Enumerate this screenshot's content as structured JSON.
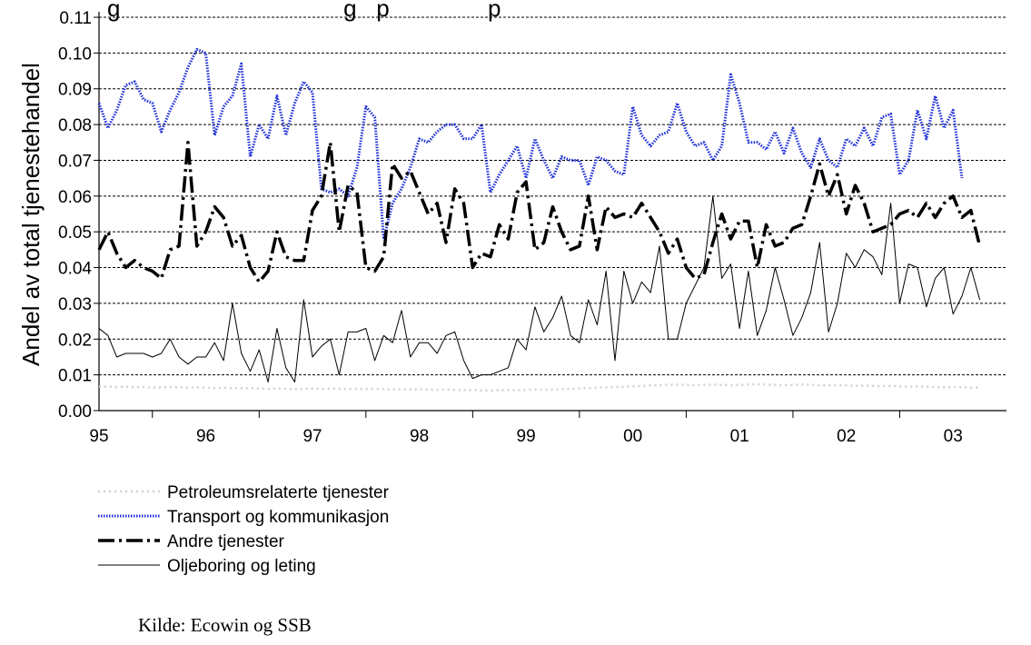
{
  "title_fragment": "g                                  g   p               p",
  "source": "Kilde: Ecowin og SSB",
  "colors": {
    "petroleum": "#d0d0d0",
    "transport": "#1f2fd6",
    "andre": "#000000",
    "olje": "#000000",
    "grid": "#000000"
  },
  "chart_data": {
    "type": "line",
    "ylabel": "Andel av total tjenestehandel",
    "ylim": [
      0,
      0.11
    ],
    "yticks": [
      "0.00",
      "0.01",
      "0.02",
      "0.03",
      "0.04",
      "0.05",
      "0.06",
      "0.07",
      "0.08",
      "0.09",
      "0.10",
      "0.11"
    ],
    "xlim": [
      1995.0,
      2003.5
    ],
    "xtick_labels": [
      "95",
      "96",
      "97",
      "98",
      "99",
      "00",
      "01",
      "02",
      "03"
    ],
    "grid": true,
    "legend_position": "bottom-left",
    "series": [
      {
        "name": "Petroleumsrelaterte tjenester",
        "style": "dotted-light",
        "x_start": 1995.0,
        "step": 0.08333,
        "values": [
          0.0068,
          0.0067,
          0.0066,
          0.0067,
          0.0065,
          0.0066,
          0.0064,
          0.0065,
          0.0066,
          0.0065,
          0.0064,
          0.0065,
          0.0064,
          0.0063,
          0.0064,
          0.0063,
          0.0062,
          0.0063,
          0.0062,
          0.0061,
          0.0062,
          0.0061,
          0.006,
          0.0061,
          0.0062,
          0.0061,
          0.0062,
          0.0061,
          0.006,
          0.0061,
          0.006,
          0.0061,
          0.006,
          0.0059,
          0.006,
          0.0059,
          0.006,
          0.0059,
          0.0058,
          0.0059,
          0.0058,
          0.0057,
          0.0058,
          0.0057,
          0.0056,
          0.0057,
          0.0058,
          0.0057,
          0.0058,
          0.0059,
          0.0058,
          0.0059,
          0.006,
          0.0061,
          0.0062,
          0.0063,
          0.0064,
          0.0065,
          0.0066,
          0.0067,
          0.0068,
          0.0069,
          0.007,
          0.0071,
          0.0072,
          0.0073,
          0.0072,
          0.0071,
          0.0072,
          0.0073,
          0.0072,
          0.0071,
          0.0072,
          0.0073,
          0.0074,
          0.0073,
          0.0072,
          0.0071,
          0.0072,
          0.0073,
          0.0072,
          0.0071,
          0.007,
          0.0071,
          0.007,
          0.0069,
          0.007,
          0.0069,
          0.0068,
          0.0069,
          0.0068,
          0.0067,
          0.0068,
          0.0067,
          0.0066,
          0.0065,
          0.0066,
          0.0065,
          0.0064,
          0.0065
        ]
      },
      {
        "name": "Transport og kommunikasjon",
        "style": "dotted-blue",
        "x_start": 1995.0,
        "step": 0.08333,
        "values": [
          0.086,
          0.079,
          0.084,
          0.091,
          0.092,
          0.087,
          0.086,
          0.078,
          0.084,
          0.089,
          0.096,
          0.101,
          0.1,
          0.077,
          0.085,
          0.088,
          0.097,
          0.071,
          0.08,
          0.076,
          0.088,
          0.077,
          0.086,
          0.092,
          0.089,
          0.062,
          0.061,
          0.062,
          0.06,
          0.068,
          0.085,
          0.082,
          0.048,
          0.058,
          0.062,
          0.068,
          0.076,
          0.075,
          0.078,
          0.08,
          0.08,
          0.076,
          0.076,
          0.08,
          0.061,
          0.066,
          0.07,
          0.074,
          0.065,
          0.076,
          0.07,
          0.065,
          0.071,
          0.07,
          0.07,
          0.063,
          0.071,
          0.07,
          0.067,
          0.066,
          0.085,
          0.077,
          0.074,
          0.077,
          0.078,
          0.086,
          0.078,
          0.074,
          0.075,
          0.07,
          0.074,
          0.094,
          0.086,
          0.075,
          0.075,
          0.073,
          0.078,
          0.072,
          0.079,
          0.072,
          0.068,
          0.076,
          0.07,
          0.068,
          0.076,
          0.074,
          0.079,
          0.074,
          0.082,
          0.083,
          0.066,
          0.07,
          0.084,
          0.076,
          0.088,
          0.079,
          0.084,
          0.065
        ]
      },
      {
        "name": "Andre tjenester",
        "style": "dashdot-black",
        "x_start": 1995.0,
        "step": 0.08333,
        "values": [
          0.045,
          0.05,
          0.044,
          0.04,
          0.042,
          0.04,
          0.039,
          0.037,
          0.045,
          0.046,
          0.075,
          0.046,
          0.05,
          0.057,
          0.054,
          0.046,
          0.049,
          0.04,
          0.036,
          0.039,
          0.05,
          0.043,
          0.042,
          0.042,
          0.056,
          0.06,
          0.075,
          0.05,
          0.063,
          0.061,
          0.04,
          0.039,
          0.043,
          0.069,
          0.065,
          0.067,
          0.061,
          0.055,
          0.058,
          0.047,
          0.062,
          0.058,
          0.04,
          0.044,
          0.043,
          0.052,
          0.048,
          0.061,
          0.064,
          0.045,
          0.047,
          0.057,
          0.05,
          0.045,
          0.046,
          0.06,
          0.045,
          0.057,
          0.054,
          0.055,
          0.054,
          0.058,
          0.054,
          0.05,
          0.044,
          0.048,
          0.04,
          0.037,
          0.038,
          0.047,
          0.055,
          0.048,
          0.053,
          0.053,
          0.04,
          0.052,
          0.046,
          0.047,
          0.051,
          0.052,
          0.06,
          0.069,
          0.06,
          0.066,
          0.055,
          0.063,
          0.058,
          0.05,
          0.051,
          0.052,
          0.055,
          0.056,
          0.054,
          0.058,
          0.054,
          0.058,
          0.06,
          0.054,
          0.056,
          0.046
        ]
      },
      {
        "name": "Oljeboring og leting",
        "style": "thin-black",
        "x_start": 1995.0,
        "step": 0.08333,
        "values": [
          0.023,
          0.021,
          0.015,
          0.016,
          0.016,
          0.016,
          0.015,
          0.016,
          0.02,
          0.015,
          0.013,
          0.015,
          0.015,
          0.019,
          0.014,
          0.03,
          0.016,
          0.011,
          0.017,
          0.008,
          0.023,
          0.012,
          0.008,
          0.031,
          0.015,
          0.018,
          0.02,
          0.01,
          0.022,
          0.022,
          0.023,
          0.014,
          0.021,
          0.019,
          0.028,
          0.015,
          0.019,
          0.019,
          0.016,
          0.021,
          0.022,
          0.014,
          0.009,
          0.01,
          0.01,
          0.011,
          0.012,
          0.02,
          0.017,
          0.029,
          0.022,
          0.026,
          0.032,
          0.021,
          0.019,
          0.031,
          0.024,
          0.039,
          0.014,
          0.039,
          0.03,
          0.036,
          0.033,
          0.046,
          0.02,
          0.02,
          0.03,
          0.035,
          0.04,
          0.06,
          0.037,
          0.041,
          0.023,
          0.039,
          0.021,
          0.028,
          0.04,
          0.031,
          0.021,
          0.026,
          0.033,
          0.047,
          0.022,
          0.03,
          0.044,
          0.04,
          0.045,
          0.043,
          0.038,
          0.058,
          0.03,
          0.041,
          0.04,
          0.029,
          0.037,
          0.04,
          0.027,
          0.032,
          0.04,
          0.031
        ]
      }
    ]
  }
}
